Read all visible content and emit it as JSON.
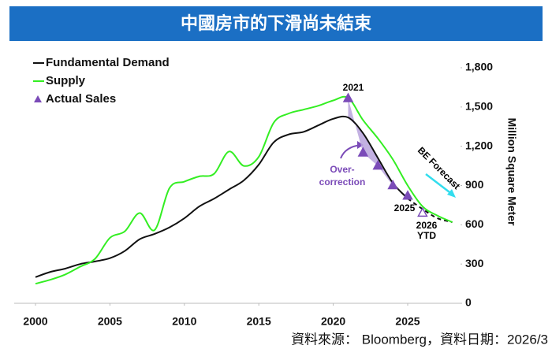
{
  "chart_data": {
    "type": "line",
    "title": "中國房市的下滑尚未結束",
    "source": "資料來源： Bloomberg，資料日期：2026/3",
    "y_label": "Million Square Meter",
    "xlim": [
      2000,
      2028.5
    ],
    "xticks": [
      2000,
      2005,
      2010,
      2015,
      2020,
      2025
    ],
    "ylim": [
      0,
      1800
    ],
    "yticks": [
      0,
      300,
      600,
      900,
      {
        "value": 1200,
        "label": "1,200"
      },
      {
        "value": 1500,
        "label": "1,500"
      },
      {
        "value": 1800,
        "label": "1,800"
      }
    ],
    "forecast_start": 2025,
    "series": [
      {
        "name": "Fundamental Demand",
        "color": "#111111",
        "dashed_forecast": true,
        "x": [
          2000,
          2001,
          2002,
          2003,
          2004,
          2005,
          2006,
          2007,
          2008,
          2009,
          2010,
          2011,
          2012,
          2013,
          2014,
          2015,
          2016,
          2017,
          2018,
          2019,
          2020,
          2021,
          2022,
          2023,
          2024,
          2025,
          2026,
          2027,
          2028
        ],
        "values": [
          200,
          240,
          265,
          300,
          320,
          345,
          400,
          490,
          530,
          580,
          650,
          740,
          800,
          870,
          940,
          1060,
          1230,
          1290,
          1310,
          1360,
          1410,
          1420,
          1300,
          1110,
          920,
          800,
          720,
          650,
          620
        ]
      },
      {
        "name": "Supply",
        "color": "#33ee22",
        "dashed_forecast": false,
        "x": [
          2000,
          2001,
          2002,
          2003,
          2004,
          2005,
          2006,
          2007,
          2008,
          2009,
          2010,
          2011,
          2012,
          2013,
          2014,
          2015,
          2016,
          2017,
          2018,
          2019,
          2020,
          2021,
          2022,
          2023,
          2024,
          2025,
          2026,
          2027,
          2028
        ],
        "values": [
          150,
          180,
          220,
          280,
          340,
          500,
          550,
          690,
          560,
          880,
          930,
          970,
          990,
          1160,
          1050,
          1120,
          1380,
          1450,
          1480,
          1510,
          1550,
          1570,
          1400,
          1260,
          1100,
          900,
          740,
          670,
          620
        ]
      },
      {
        "name": "Actual Sales",
        "color": "#7b4bb8",
        "marker": "triangle",
        "x": [
          2021,
          2022,
          2023,
          2024,
          2025,
          2026
        ],
        "values": [
          1565,
          1150,
          1050,
          900,
          820,
          690
        ],
        "hollow": [
          false,
          false,
          false,
          false,
          false,
          true
        ]
      }
    ],
    "annotations": [
      "2021",
      "Over-",
      "correction",
      "2025",
      "2026",
      "YTD",
      "BE Forecast"
    ]
  }
}
